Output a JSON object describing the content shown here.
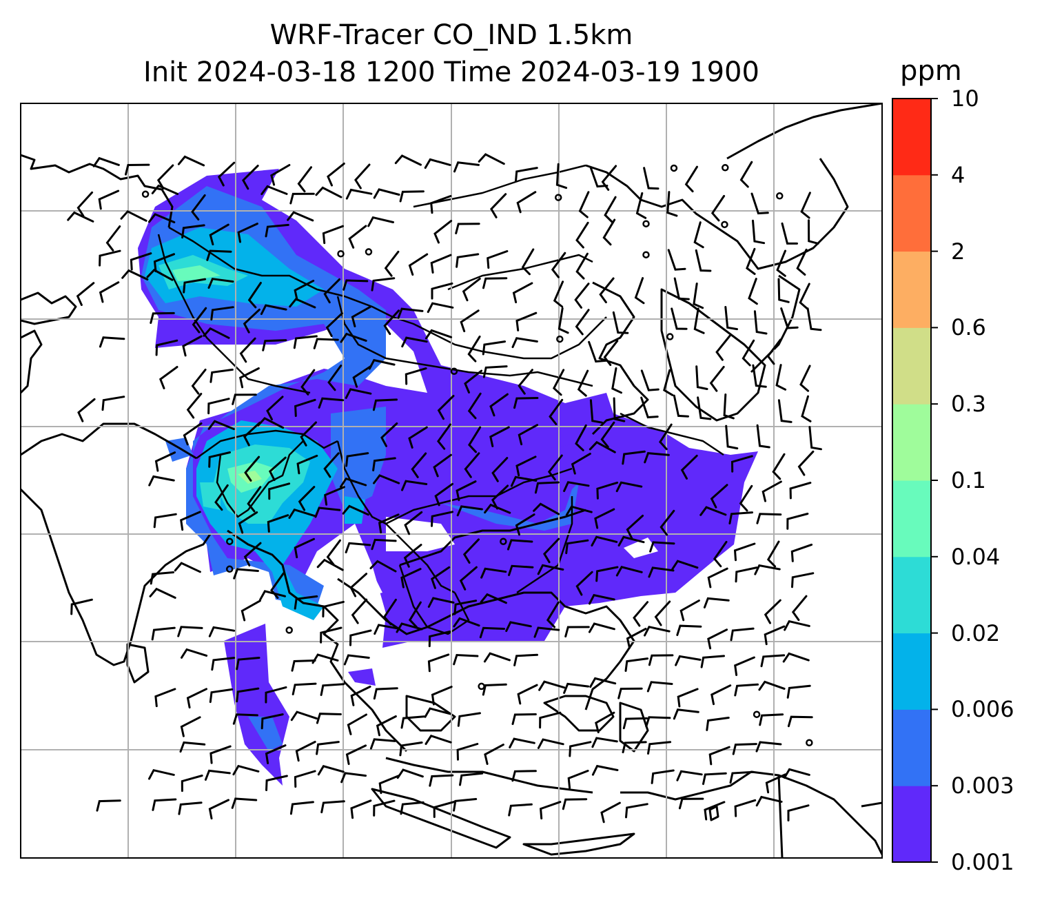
{
  "title": {
    "line1": "WRF-Tracer CO_IND 1.5km",
    "line2": "Init 2024-03-18 1200 Time 2024-03-19 1900"
  },
  "colorbar": {
    "unit": "ppm",
    "levels": [
      "0.001",
      "0.003",
      "0.006",
      "0.02",
      "0.04",
      "0.1",
      "0.3",
      "0.6",
      "2",
      "4",
      "10"
    ],
    "colors": [
      "#6029fa",
      "#3272f5",
      "#03b2ea",
      "#2ddcd6",
      "#68fbbc",
      "#9ffc9b",
      "#d0de88",
      "#fdae62",
      "#ff6e3a",
      "#ff2a16"
    ]
  },
  "map": {
    "variable": "CO_IND tracer concentration",
    "gridlines": true,
    "features": [
      "coastlines",
      "country-borders",
      "wind-barbs",
      "calm-wind-circles"
    ]
  }
}
